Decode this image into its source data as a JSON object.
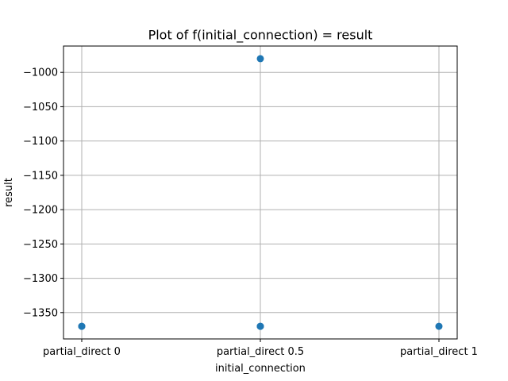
{
  "chart_data": {
    "type": "scatter",
    "title": "Plot of f(initial_connection) = result",
    "xlabel": "initial_connection",
    "ylabel": "result",
    "categories": [
      "partial_direct 0",
      "partial_direct 0.5",
      "partial_direct 1"
    ],
    "points": [
      {
        "x": "partial_direct 0",
        "y": -1370
      },
      {
        "x": "partial_direct 0",
        "y": -1370
      },
      {
        "x": "partial_direct 0.5",
        "y": -980
      },
      {
        "x": "partial_direct 0.5",
        "y": -1370
      },
      {
        "x": "partial_direct 0.5",
        "y": -1370
      },
      {
        "x": "partial_direct 1",
        "y": -1370
      }
    ],
    "yticks": [
      -1000,
      -1050,
      -1100,
      -1150,
      -1200,
      -1250,
      -1300,
      -1350
    ],
    "ytick_labels": [
      "−1000",
      "−1050",
      "−1100",
      "−1150",
      "−1200",
      "−1250",
      "−1300",
      "−1350"
    ],
    "ylim": [
      -1388.4,
      -961.6
    ],
    "grid": true,
    "marker_color": "#1f77b4"
  }
}
